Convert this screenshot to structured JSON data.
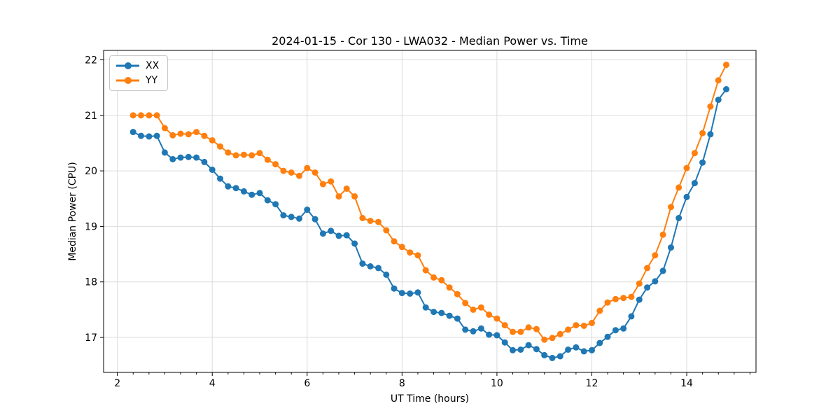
{
  "figure": {
    "background": "#ffffff"
  },
  "chart_data": {
    "type": "line",
    "title": "2024-01-15 - Cor 130 - LWA032 - Median Power vs. Time",
    "xlabel": "UT Time (hours)",
    "ylabel": "Median Power (CPU)",
    "xlim": [
      1.71,
      15.46
    ],
    "ylim": [
      16.37,
      22.17
    ],
    "xticks": [
      2,
      4,
      6,
      8,
      10,
      12,
      14
    ],
    "yticks": [
      17,
      18,
      19,
      20,
      21,
      22
    ],
    "minor_xtick_step": 0.3333,
    "grid": true,
    "legend_position": "upper-left",
    "marker": "circle",
    "x": [
      2.333,
      2.5,
      2.667,
      2.833,
      3.0,
      3.167,
      3.333,
      3.5,
      3.667,
      3.833,
      4.0,
      4.167,
      4.333,
      4.5,
      4.667,
      4.833,
      5.0,
      5.167,
      5.333,
      5.5,
      5.667,
      5.833,
      6.0,
      6.167,
      6.333,
      6.5,
      6.667,
      6.833,
      7.0,
      7.167,
      7.333,
      7.5,
      7.667,
      7.833,
      8.0,
      8.167,
      8.333,
      8.5,
      8.667,
      8.833,
      9.0,
      9.167,
      9.333,
      9.5,
      9.667,
      9.833,
      10.0,
      10.167,
      10.333,
      10.5,
      10.667,
      10.833,
      11.0,
      11.167,
      11.333,
      11.5,
      11.667,
      11.833,
      12.0,
      12.167,
      12.333,
      12.5,
      12.667,
      12.833,
      13.0,
      13.167,
      13.333,
      13.5,
      13.667,
      13.833,
      14.0,
      14.167,
      14.333,
      14.5,
      14.667,
      14.833
    ],
    "series": [
      {
        "name": "XX",
        "color": "#1f77b4",
        "values": [
          20.7,
          20.63,
          20.62,
          20.63,
          20.33,
          20.21,
          20.24,
          20.25,
          20.24,
          20.16,
          20.02,
          19.86,
          19.72,
          19.69,
          19.63,
          19.57,
          19.6,
          19.47,
          19.4,
          19.2,
          19.17,
          19.14,
          19.3,
          19.13,
          18.87,
          18.92,
          18.83,
          18.84,
          18.69,
          18.33,
          18.28,
          18.25,
          18.13,
          17.88,
          17.8,
          17.79,
          17.81,
          17.54,
          17.46,
          17.44,
          17.39,
          17.34,
          17.14,
          17.11,
          17.16,
          17.05,
          17.04,
          16.91,
          16.77,
          16.78,
          16.86,
          16.79,
          16.68,
          16.63,
          16.66,
          16.78,
          16.82,
          16.75,
          16.77,
          16.9,
          17.01,
          17.13,
          17.16,
          17.38,
          17.68,
          17.9,
          18.01,
          18.2,
          18.62,
          19.15,
          19.53,
          19.78,
          20.15,
          20.66,
          21.28,
          21.47
        ]
      },
      {
        "name": "YY",
        "color": "#ff7f0e",
        "values": [
          21.0,
          21.0,
          21.0,
          21.0,
          20.77,
          20.64,
          20.67,
          20.66,
          20.7,
          20.63,
          20.55,
          20.44,
          20.33,
          20.28,
          20.29,
          20.28,
          20.32,
          20.2,
          20.12,
          20.0,
          19.97,
          19.91,
          20.05,
          19.97,
          19.76,
          19.81,
          19.54,
          19.68,
          19.54,
          19.15,
          19.1,
          19.08,
          18.93,
          18.73,
          18.63,
          18.53,
          18.48,
          18.21,
          18.08,
          18.03,
          17.9,
          17.78,
          17.62,
          17.5,
          17.54,
          17.41,
          17.34,
          17.22,
          17.1,
          17.1,
          17.18,
          17.15,
          16.96,
          16.99,
          17.06,
          17.14,
          17.22,
          17.21,
          17.26,
          17.48,
          17.63,
          17.69,
          17.71,
          17.73,
          17.97,
          18.25,
          18.48,
          18.85,
          19.35,
          19.7,
          20.05,
          20.32,
          20.68,
          21.16,
          21.63,
          21.91
        ]
      }
    ]
  }
}
